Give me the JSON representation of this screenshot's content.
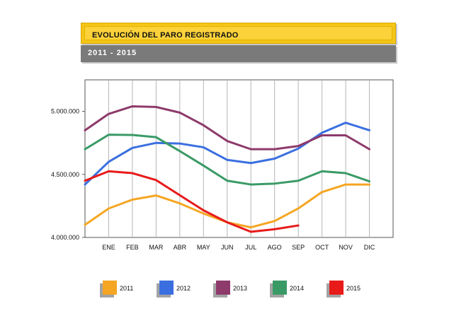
{
  "header": {
    "title": "EVOLUCIÓN DEL PARO REGISTRADO",
    "subtitle": "2011  -  2015"
  },
  "chart_data": {
    "type": "line",
    "categories": [
      "",
      "ENE",
      "FEB",
      "MAR",
      "ABR",
      "MAY",
      "JUN",
      "JUL",
      "AGO",
      "SEP",
      "OCT",
      "NOV",
      "DIC"
    ],
    "x_tick_labels": [
      "ENE",
      "FEB",
      "MAR",
      "ABR",
      "MAY",
      "JUN",
      "JUL",
      "AGO",
      "SEP",
      "OCT",
      "NOV",
      "DIC"
    ],
    "y_ticks": [
      4000000,
      4500000,
      5000000
    ],
    "y_tick_labels": [
      "4.000.000",
      "4.500.000",
      "5.000.000"
    ],
    "ylim": [
      4000000,
      5250000
    ],
    "grid": "vertical",
    "legend_position": "bottom",
    "series": [
      {
        "name": "2011",
        "color": "#f5a623",
        "values": [
          4100000,
          4230000,
          4300000,
          4333000,
          4270000,
          4190000,
          4120000,
          4080000,
          4130000,
          4230000,
          4360000,
          4420000,
          4420000
        ]
      },
      {
        "name": "2012",
        "color": "#3b6fe0",
        "values": [
          4420000,
          4600000,
          4710000,
          4750000,
          4745000,
          4715000,
          4615000,
          4590000,
          4625000,
          4705000,
          4830000,
          4910000,
          4850000
        ]
      },
      {
        "name": "2013",
        "color": "#8e3a6b",
        "values": [
          4850000,
          4980000,
          5040000,
          5035000,
          4990000,
          4890000,
          4765000,
          4700000,
          4700000,
          4725000,
          4810000,
          4810000,
          4700000
        ]
      },
      {
        "name": "2014",
        "color": "#3a9a66",
        "values": [
          4700000,
          4815000,
          4813000,
          4795000,
          4685000,
          4570000,
          4450000,
          4420000,
          4427000,
          4450000,
          4525000,
          4510000,
          4445000
        ]
      },
      {
        "name": "2015",
        "color": "#e81a1a",
        "values": [
          4450000,
          4525000,
          4510000,
          4455000,
          4335000,
          4215000,
          4120000,
          4045000,
          4065000,
          4095000,
          null,
          null,
          null
        ]
      }
    ]
  }
}
